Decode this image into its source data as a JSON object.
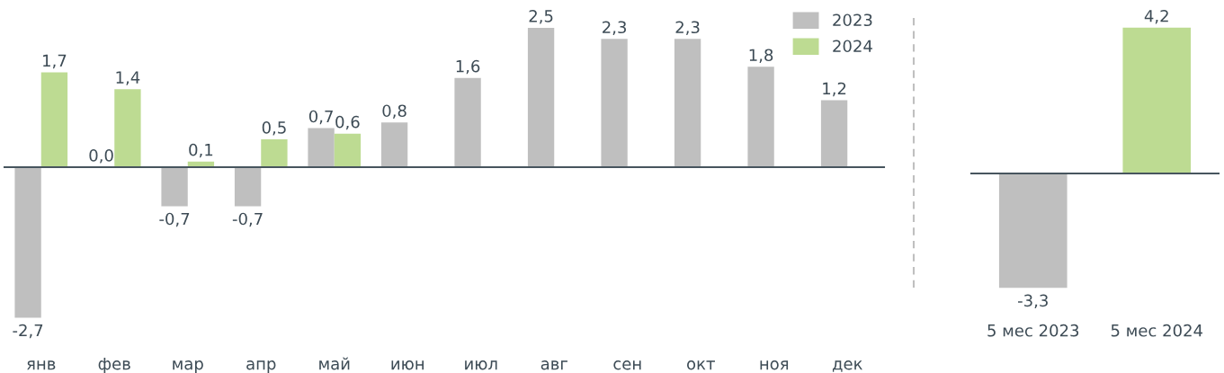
{
  "chart_data": [
    {
      "type": "bar",
      "categories": [
        "янв",
        "фев",
        "мар",
        "апр",
        "май",
        "июн",
        "июл",
        "авг",
        "сен",
        "окт",
        "ноя",
        "дек"
      ],
      "series": [
        {
          "name": "2023",
          "color": "#bfbfbf",
          "values": [
            -2.7,
            0.0,
            -0.7,
            -0.7,
            0.7,
            0.8,
            1.6,
            2.5,
            2.3,
            2.3,
            1.8,
            1.2
          ],
          "value_labels": [
            "-2,7",
            "0,0",
            "-0,7",
            "-0,7",
            "0,7",
            "0,8",
            "1,6",
            "2,5",
            "2,3",
            "2,3",
            "1,8",
            "1,2"
          ]
        },
        {
          "name": "2024",
          "color": "#bddb92",
          "values": [
            1.7,
            1.4,
            0.1,
            0.5,
            0.6,
            null,
            null,
            null,
            null,
            null,
            null,
            null
          ],
          "value_labels": [
            "1,7",
            "1,4",
            "0,1",
            "0,5",
            "0,6",
            null,
            null,
            null,
            null,
            null,
            null,
            null
          ]
        }
      ],
      "legend": "top right",
      "tick_labels": "x"
    },
    {
      "type": "bar",
      "categories": [
        "5 мес 2023",
        "5 мес 2024"
      ],
      "values": [
        -3.3,
        4.2
      ],
      "colors": [
        "#bfbfbf",
        "#bddb92"
      ],
      "value_labels": [
        "-3,3",
        "4,2"
      ],
      "tick_labels": "x"
    }
  ]
}
